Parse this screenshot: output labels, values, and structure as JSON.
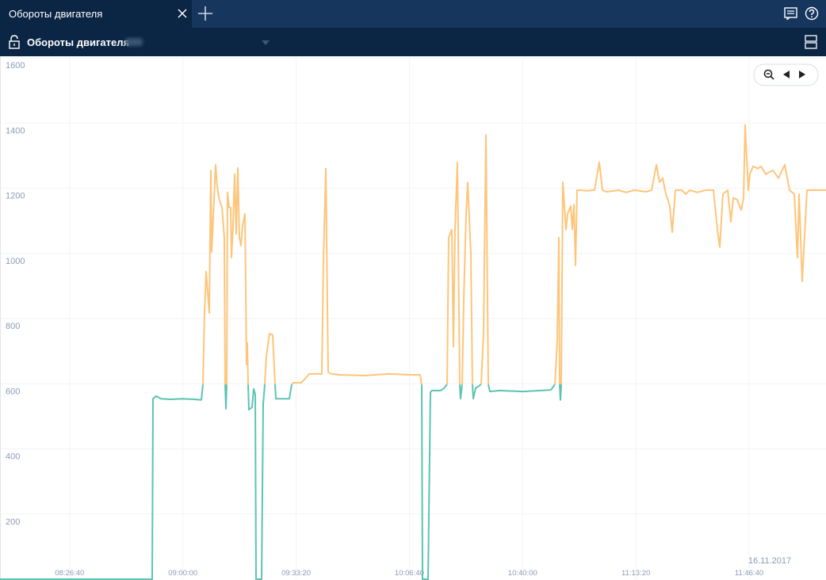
{
  "tab": {
    "title": "Обороты двигателя"
  },
  "toolbar": {
    "title": "Обороты двигателя"
  },
  "chart_data": {
    "type": "line",
    "annotation": "16.11.2017",
    "xlim": [
      29170,
      43758
    ],
    "xticks": [
      {
        "value": 30400,
        "label": "08:26:40"
      },
      {
        "value": 32400,
        "label": "09:00:00"
      },
      {
        "value": 34400,
        "label": "09:33:20"
      },
      {
        "value": 36400,
        "label": "10:06:40"
      },
      {
        "value": 38400,
        "label": "10:40:00"
      },
      {
        "value": 40400,
        "label": "11:13:20"
      },
      {
        "value": 42400,
        "label": "11:46:40"
      }
    ],
    "ylim": [
      0,
      1600
    ],
    "yticks": [
      200,
      400,
      600,
      800,
      1000,
      1200,
      1400,
      1600
    ],
    "grid": true,
    "series": [
      {
        "color": "#5cc3b3",
        "x": [
          29170,
          31858,
          31872,
          31928,
          32012,
          32180,
          32390,
          32600,
          32726,
          32754,
          null,
          33146,
          33160,
          33174,
          null,
          33552,
          33566,
          33622,
          33650,
          33678,
          33692,
          33790,
          33818,
          33846,
          null,
          34028,
          34042,
          34280,
          34322,
          null,
          36618,
          36632,
          36730,
          36772,
          36800,
          36954,
          37010,
          37066,
          null,
          37290,
          37304,
          37332,
          null,
          37514,
          37528,
          37570,
          37668,
          null,
          37794,
          37822,
          37990,
          38410,
          38900,
          38970,
          null,
          39054,
          39068,
          39082
        ],
        "values": [
          0,
          0,
          554,
          562,
          554,
          552,
          554,
          552,
          550,
          598,
          null,
          598,
          523,
          598,
          null,
          598,
          520,
          528,
          584,
          567,
          0,
          0,
          537,
          598,
          null,
          598,
          554,
          554,
          598,
          null,
          598,
          0,
          0,
          574,
          579,
          579,
          586,
          598,
          null,
          598,
          554,
          598,
          null,
          598,
          554,
          586,
          598,
          null,
          598,
          576,
          579,
          576,
          581,
          598,
          null,
          598,
          550,
          598
        ]
      },
      {
        "color": "#fdc57a",
        "x": [
          32754,
          32782,
          32810,
          32866,
          32894,
          32908,
          32936,
          32978,
          33006,
          33034,
          33090,
          33132,
          33146,
          null,
          33174,
          33188,
          33216,
          33244,
          33258,
          33286,
          33314,
          33342,
          33370,
          33398,
          33426,
          33454,
          33496,
          33524,
          33538,
          33552,
          null,
          33846,
          33874,
          33930,
          33986,
          34028,
          null,
          34322,
          34350,
          34490,
          34574,
          34630,
          34854,
          34882,
          34924,
          34966,
          35022,
          35190,
          35610,
          36030,
          36450,
          36590,
          36618,
          null,
          37066,
          37094,
          37150,
          37178,
          37206,
          37248,
          37290,
          null,
          37332,
          37360,
          37402,
          37430,
          37486,
          37514,
          null,
          37668,
          37710,
          37752,
          37794,
          null,
          38970,
          39012,
          39040,
          39054,
          null,
          39082,
          39110,
          39166,
          39194,
          39250,
          39278,
          39306,
          39334,
          39362,
          39418,
          39530,
          39670,
          39754,
          39810,
          39880,
          40090,
          40230,
          40370,
          40580,
          40678,
          40762,
          40818,
          40874,
          40930,
          41000,
          41042,
          41098,
          41210,
          41280,
          41350,
          41490,
          41630,
          41770,
          41840,
          41882,
          41938,
          42022,
          42078,
          42120,
          42190,
          42260,
          42302,
          42330,
          42386,
          42414,
          42470,
          42554,
          42610,
          42694,
          42820,
          42918,
          43030,
          43114,
          43198,
          43254,
          43282,
          43338,
          43422,
          43590,
          43758
        ],
        "values": [
          598,
          817,
          944,
          817,
          1255,
          1004,
          1109,
          1272,
          1206,
          1170,
          1141,
          1048,
          598,
          null,
          598,
          1187,
          1141,
          1141,
          987,
          1085,
          1243,
          1060,
          1262,
          1048,
          1024,
          1085,
          1121,
          659,
          725,
          598,
          null,
          598,
          683,
          754,
          749,
          598,
          null,
          598,
          603,
          603,
          618,
          630,
          630,
          975,
          1260,
          635,
          630,
          627,
          625,
          630,
          627,
          627,
          598,
          null,
          598,
          1048,
          1073,
          713,
          1073,
          1279,
          598,
          null,
          598,
          854,
          1121,
          1218,
          999,
          598,
          null,
          598,
          756,
          1364,
          598,
          null,
          598,
          732,
          1048,
          598,
          null,
          598,
          1218,
          1073,
          1121,
          1145,
          1073,
          1150,
          963,
          1194,
          1194,
          1192,
          1194,
          1279,
          1194,
          1189,
          1194,
          1187,
          1194,
          1189,
          1194,
          1272,
          1218,
          1231,
          1182,
          1145,
          1065,
          1194,
          1194,
          1182,
          1194,
          1187,
          1194,
          1194,
          1073,
          1019,
          1182,
          1194,
          1097,
          1170,
          1165,
          1133,
          1170,
          1394,
          1194,
          1243,
          1267,
          1260,
          1267,
          1243,
          1255,
          1231,
          1272,
          1194,
          1182,
          987,
          1182,
          914,
          1194,
          1194,
          1194
        ]
      }
    ]
  }
}
